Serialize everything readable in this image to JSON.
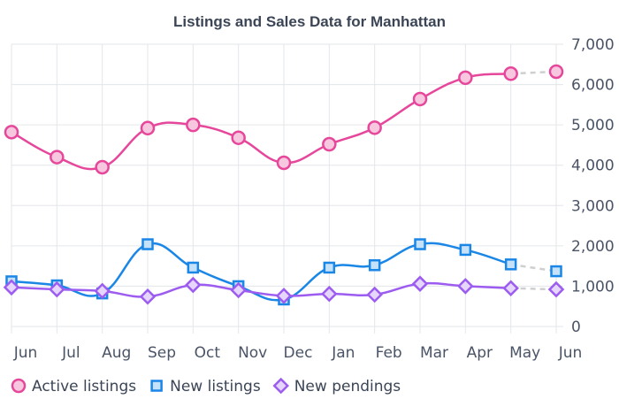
{
  "chart_data": {
    "type": "line",
    "title": "Listings and Sales Data for Manhattan",
    "categories": [
      "Jun",
      "Jul",
      "Aug",
      "Sep",
      "Oct",
      "Nov",
      "Dec",
      "Jan",
      "Feb",
      "Mar",
      "Apr",
      "May",
      "Jun"
    ],
    "y_ticks": [
      "0",
      "1,000",
      "2,000",
      "3,000",
      "4,000",
      "5,000",
      "6,000",
      "7,000"
    ],
    "ylim": [
      0,
      7000
    ],
    "y_axis_side": "right",
    "grid": true,
    "legend_position": "bottom-left",
    "projected_last_segment": true,
    "series": [
      {
        "name": "Active listings",
        "marker": "circle",
        "color": "#e6479b",
        "fill": "#f7c7e0",
        "values": [
          4820,
          4200,
          3950,
          4920,
          5000,
          4680,
          4060,
          4520,
          4930,
          5640,
          6170,
          6270,
          6320
        ]
      },
      {
        "name": "New listings",
        "marker": "square",
        "color": "#1a86e6",
        "fill": "#c6e2fb",
        "values": [
          1120,
          1020,
          820,
          2040,
          1460,
          1000,
          670,
          1460,
          1520,
          2040,
          1900,
          1540,
          1370
        ]
      },
      {
        "name": "New pendings",
        "marker": "diamond",
        "color": "#9d5cf0",
        "fill": "#e6d6fc",
        "values": [
          970,
          920,
          880,
          740,
          1030,
          900,
          760,
          810,
          790,
          1060,
          1000,
          950,
          920
        ]
      }
    ]
  }
}
